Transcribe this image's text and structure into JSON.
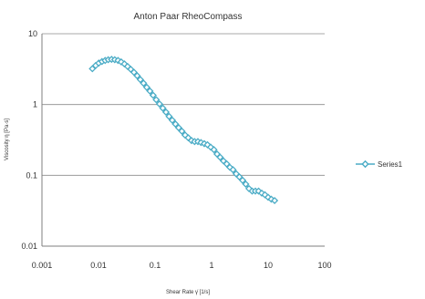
{
  "chart_data": {
    "type": "scatter",
    "title": "Anton Paar RheoCompass",
    "xlabel": "Shear Rate γ̇ [1/s]",
    "ylabel": "Viscosity η [Pa·s]",
    "xscale": "log",
    "yscale": "log",
    "xlim": [
      0.001,
      100
    ],
    "ylim": [
      0.01,
      10
    ],
    "x_ticks": [
      "0.001",
      "0.01",
      "0.1",
      "1",
      "10",
      "100"
    ],
    "y_ticks": [
      "0.01",
      "0.1",
      "1",
      "10"
    ],
    "grid": "horizontal major gridlines",
    "legend": "right",
    "marker": "open diamond with connecting line",
    "series": [
      {
        "name": "Series1",
        "color": "#4bacc6",
        "points": [
          [
            0.0078,
            3.2
          ],
          [
            0.0089,
            3.55
          ],
          [
            0.0101,
            3.85
          ],
          [
            0.0115,
            4.05
          ],
          [
            0.0131,
            4.2
          ],
          [
            0.0149,
            4.3
          ],
          [
            0.017,
            4.35
          ],
          [
            0.0194,
            4.3
          ],
          [
            0.0221,
            4.2
          ],
          [
            0.0252,
            4.0
          ],
          [
            0.0287,
            3.75
          ],
          [
            0.0327,
            3.45
          ],
          [
            0.0372,
            3.15
          ],
          [
            0.0424,
            2.85
          ],
          [
            0.0483,
            2.55
          ],
          [
            0.055,
            2.25
          ],
          [
            0.0626,
            2.0
          ],
          [
            0.0713,
            1.75
          ],
          [
            0.0812,
            1.55
          ],
          [
            0.0925,
            1.35
          ],
          [
            0.105,
            1.17
          ],
          [
            0.12,
            1.02
          ],
          [
            0.137,
            0.89
          ],
          [
            0.156,
            0.78
          ],
          [
            0.177,
            0.68
          ],
          [
            0.202,
            0.6
          ],
          [
            0.23,
            0.53
          ],
          [
            0.262,
            0.47
          ],
          [
            0.298,
            0.42
          ],
          [
            0.34,
            0.37
          ],
          [
            0.387,
            0.34
          ],
          [
            0.441,
            0.31
          ],
          [
            0.502,
            0.3
          ],
          [
            0.572,
            0.3
          ],
          [
            0.651,
            0.29
          ],
          [
            0.742,
            0.28
          ],
          [
            0.845,
            0.27
          ],
          [
            0.962,
            0.25
          ],
          [
            1.1,
            0.23
          ],
          [
            1.25,
            0.2
          ],
          [
            1.42,
            0.18
          ],
          [
            1.62,
            0.16
          ],
          [
            1.85,
            0.145
          ],
          [
            2.1,
            0.13
          ],
          [
            2.39,
            0.12
          ],
          [
            2.73,
            0.105
          ],
          [
            3.1,
            0.095
          ],
          [
            3.53,
            0.085
          ],
          [
            4.03,
            0.075
          ],
          [
            4.59,
            0.065
          ],
          [
            5.22,
            0.06
          ],
          [
            5.95,
            0.06
          ],
          [
            6.78,
            0.06
          ],
          [
            7.72,
            0.056
          ],
          [
            8.79,
            0.053
          ],
          [
            10.0,
            0.049
          ],
          [
            11.4,
            0.046
          ],
          [
            13.0,
            0.044
          ]
        ]
      }
    ]
  }
}
